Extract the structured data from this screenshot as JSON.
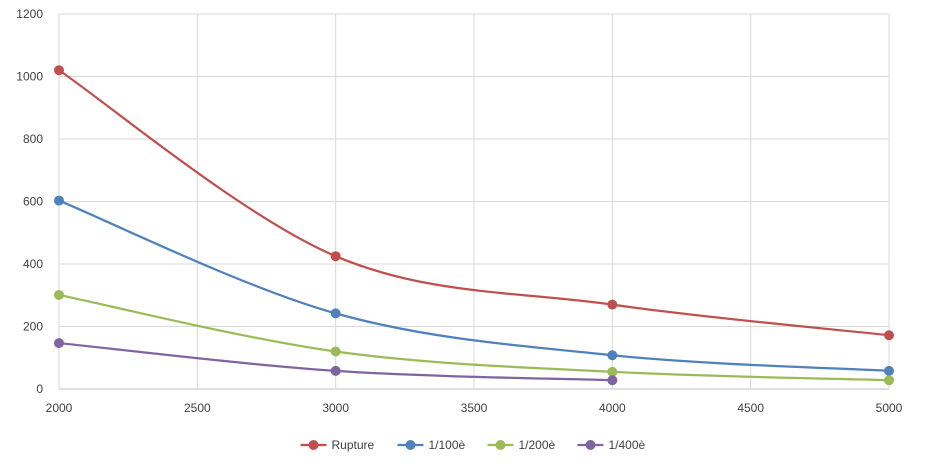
{
  "chart_data": {
    "type": "line",
    "title": "",
    "xlabel": "",
    "ylabel": "",
    "xlim": [
      2000,
      5000
    ],
    "ylim": [
      0,
      1200
    ],
    "xticks": [
      2000,
      2500,
      3000,
      3500,
      4000,
      4500,
      5000
    ],
    "yticks": [
      0,
      200,
      400,
      600,
      800,
      1000,
      1200
    ],
    "grid": true,
    "smooth": true,
    "legend_position": "bottom",
    "series": [
      {
        "name": "Rupture",
        "color": "#C0504D",
        "x": [
          2000,
          3000,
          4000,
          5000
        ],
        "y": [
          1020,
          425,
          270,
          172
        ]
      },
      {
        "name": "1/100è",
        "color": "#4F81BD",
        "x": [
          2000,
          3000,
          4000,
          5000
        ],
        "y": [
          603,
          242,
          108,
          58
        ]
      },
      {
        "name": "1/200è",
        "color": "#9BBB59",
        "x": [
          2000,
          3000,
          4000,
          5000
        ],
        "y": [
          301,
          120,
          55,
          28
        ]
      },
      {
        "name": "1/400è",
        "color": "#8064A2",
        "x": [
          2000,
          3000,
          4000
        ],
        "y": [
          147,
          58,
          28
        ]
      }
    ]
  }
}
